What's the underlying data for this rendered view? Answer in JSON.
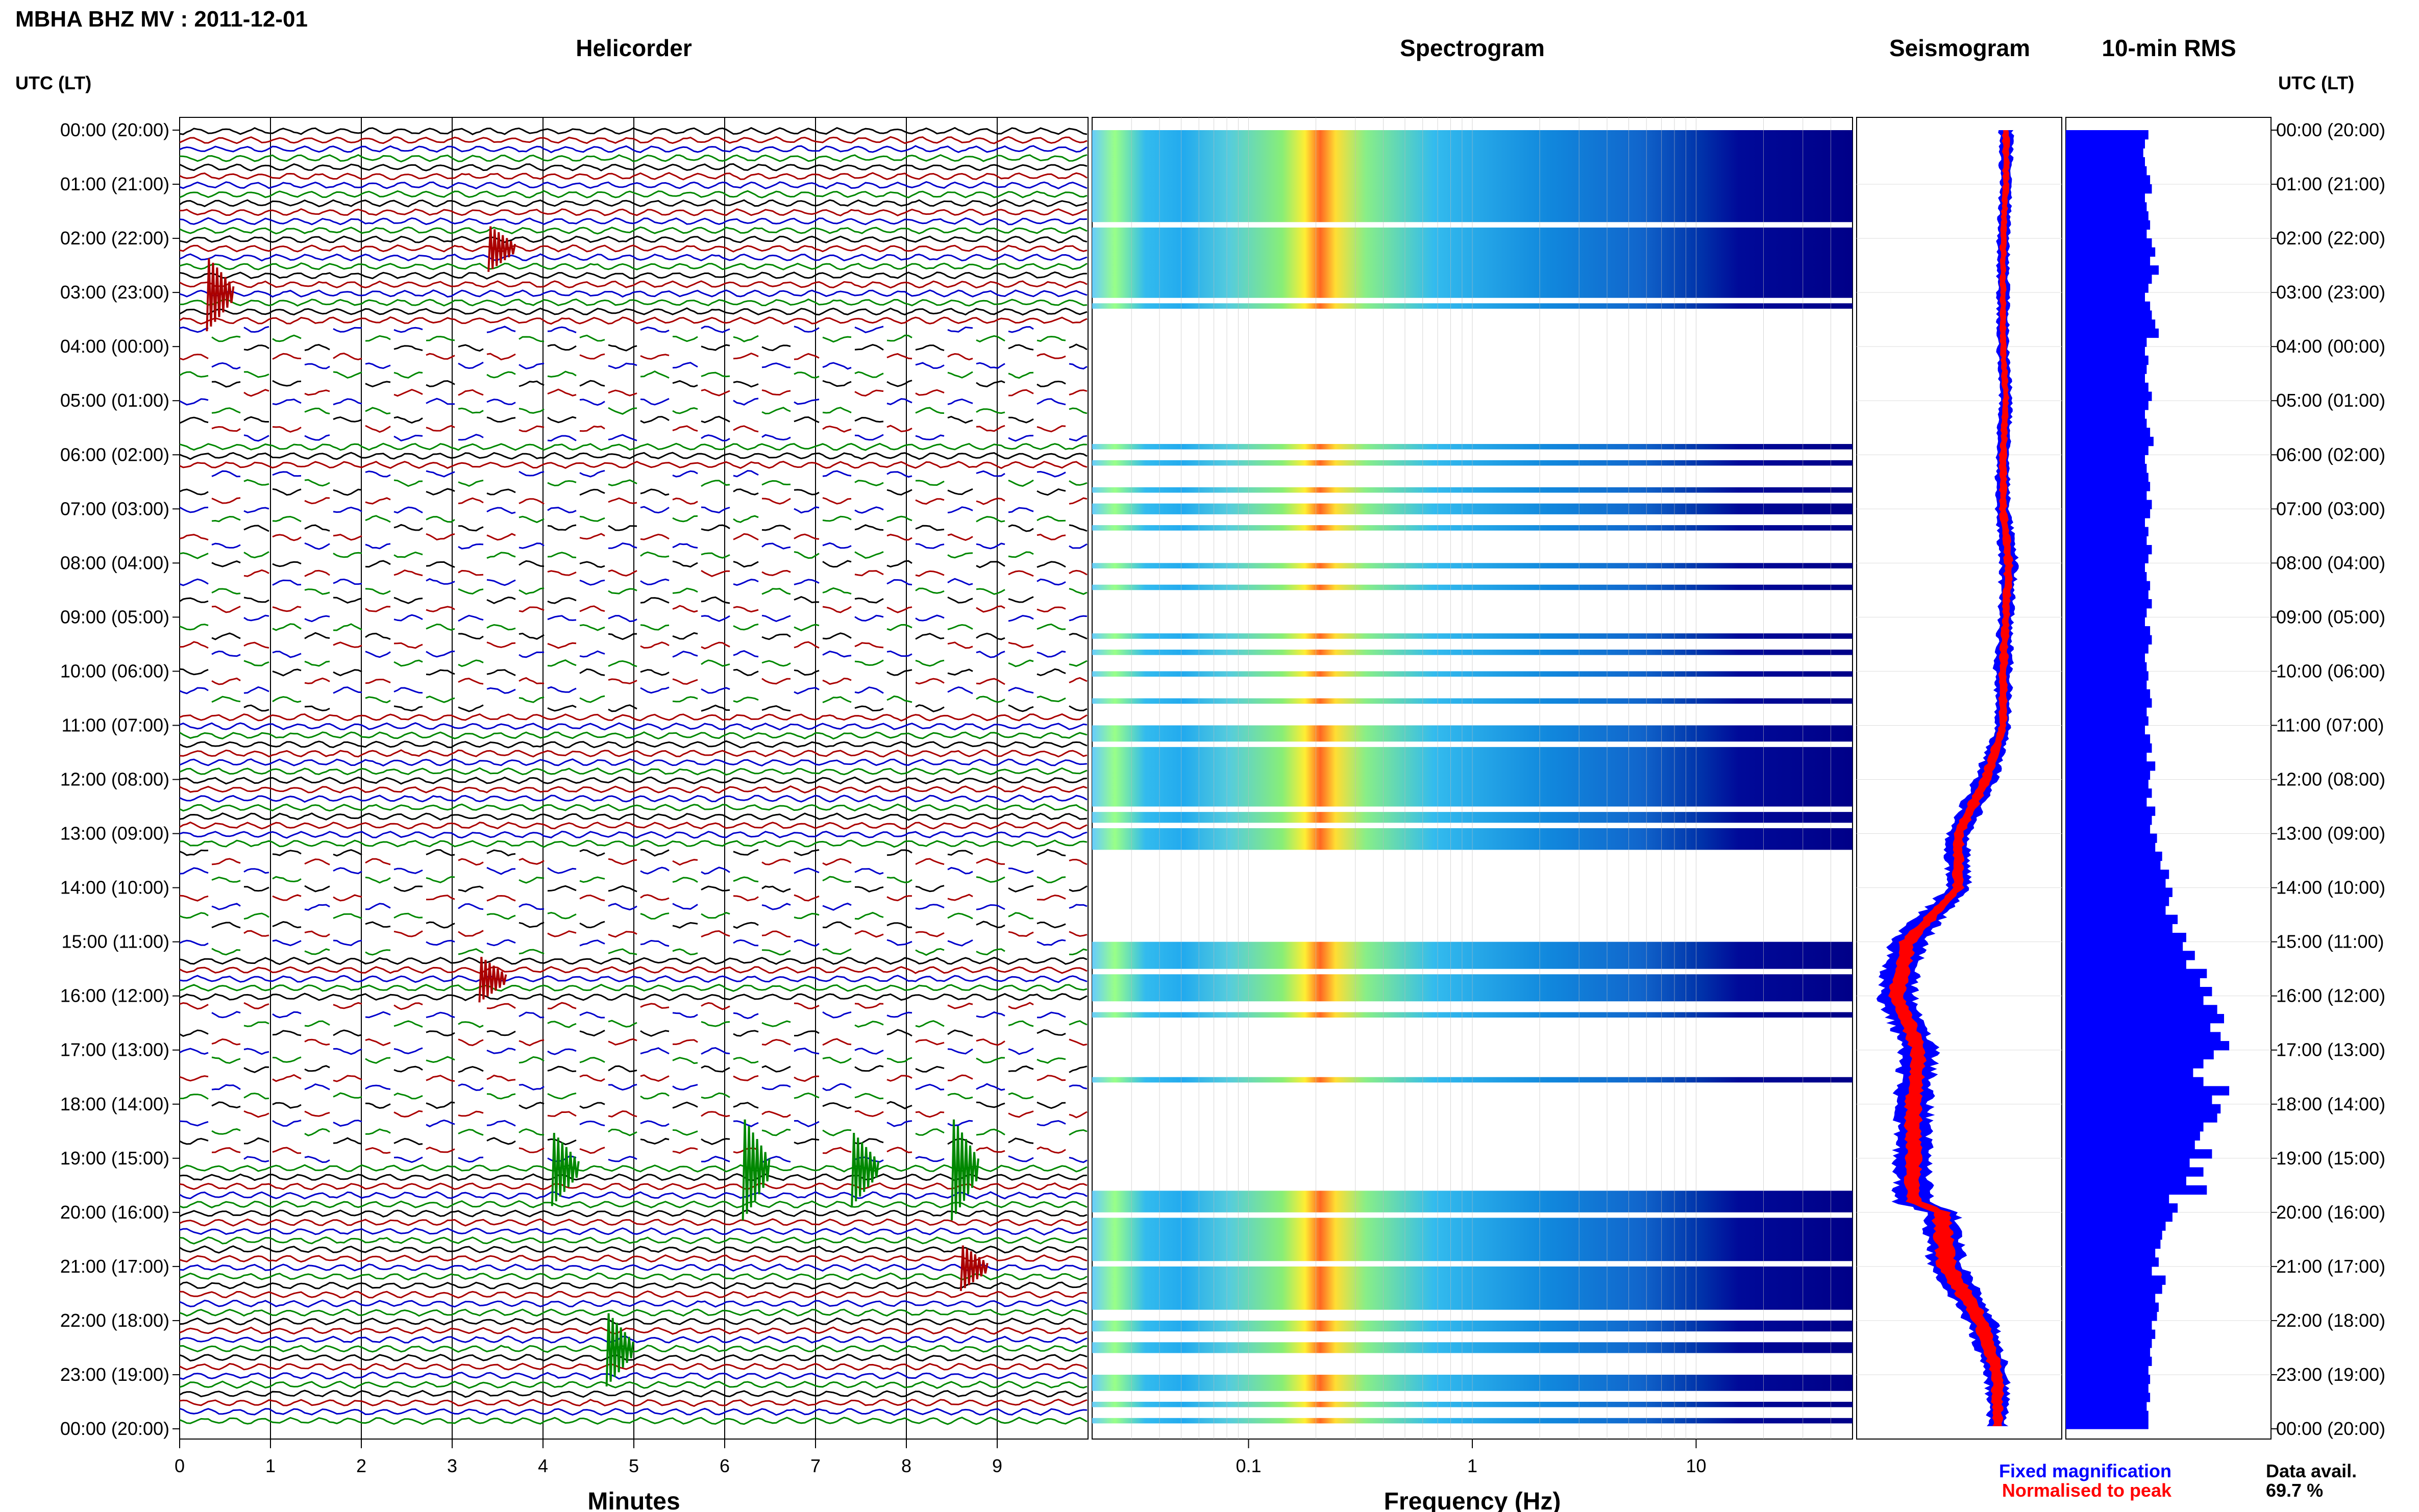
{
  "header": {
    "title": "MBHA BHZ MV : 2011-12-01",
    "utc_label_left": "UTC (LT)",
    "utc_label_right": "UTC (LT)"
  },
  "panels": {
    "helicorder": "Helicorder",
    "spectrogram": "Spectrogram",
    "seismogram": "Seismogram",
    "rms": "10-min RMS"
  },
  "axes": {
    "helicorder_xlabel": "Minutes",
    "spectrogram_xlabel": "Frequency (Hz)"
  },
  "legend": {
    "fixed": "Fixed magnification",
    "normalised": "Normalised to peak",
    "fixed_color": "#0000ff",
    "normalised_color": "#ff0000"
  },
  "data_avail": {
    "label": "Data avail.",
    "value": "69.7 %"
  },
  "colors": {
    "trace_black": "#000000",
    "trace_red": "#aa0000",
    "trace_blue": "#0000cc",
    "trace_green": "#008800",
    "rms_bar": "#0000ff",
    "spec_base": "#000088"
  },
  "chart_data": [
    {
      "type": "line",
      "panel": "Helicorder",
      "xlabel": "Minutes",
      "xlim": [
        0,
        10
      ],
      "x_ticks": [
        "0",
        "1",
        "2",
        "3",
        "4",
        "5",
        "6",
        "7",
        "8",
        "9"
      ],
      "y_ticks": [
        "00:00 (20:00)",
        "01:00 (21:00)",
        "02:00 (22:00)",
        "03:00 (23:00)",
        "04:00 (00:00)",
        "05:00 (01:00)",
        "06:00 (02:00)",
        "07:00 (03:00)",
        "08:00 (04:00)",
        "09:00 (05:00)",
        "10:00 (06:00)",
        "11:00 (07:00)",
        "12:00 (08:00)",
        "13:00 (09:00)",
        "14:00 (10:00)",
        "15:00 (11:00)",
        "16:00 (12:00)",
        "17:00 (13:00)",
        "18:00 (14:00)",
        "19:00 (15:00)",
        "20:00 (16:00)",
        "21:00 (17:00)",
        "22:00 (18:00)",
        "23:00 (19:00)",
        "00:00 (20:00)"
      ],
      "gap_rows_10min": [
        22,
        23,
        24,
        25,
        26,
        27,
        28,
        29,
        30,
        31,
        32,
        33,
        34,
        38,
        39,
        40,
        41,
        42,
        43,
        44,
        45,
        46,
        47,
        48,
        49,
        50,
        51,
        52,
        53,
        54,
        55,
        56,
        57,
        58,
        59,
        60,
        61,
        62,
        63,
        64,
        80,
        81,
        82,
        83,
        84,
        85,
        86,
        87,
        88,
        89,
        90,
        91,
        97,
        98,
        99,
        100,
        101,
        102,
        103,
        104,
        105,
        106,
        107,
        108,
        109,
        110,
        111,
        112,
        113,
        114
      ],
      "events": [
        {
          "row": 13,
          "minute": 3.4,
          "size": 1
        },
        {
          "row": 18,
          "minute": 0.3,
          "size": 2
        },
        {
          "row": 94,
          "minute": 3.3,
          "size": 1
        },
        {
          "row": 115,
          "minute": 4.1,
          "size": 2
        },
        {
          "row": 115,
          "minute": 6.2,
          "size": 3
        },
        {
          "row": 115,
          "minute": 7.4,
          "size": 2
        },
        {
          "row": 115,
          "minute": 8.5,
          "size": 3
        },
        {
          "row": 126,
          "minute": 8.6,
          "size": 1
        },
        {
          "row": 135,
          "minute": 4.7,
          "size": 2
        }
      ]
    },
    {
      "type": "heatmap",
      "panel": "Spectrogram",
      "xlabel": "Frequency (Hz)",
      "x_scale": "log",
      "xlim": [
        0.02,
        50
      ],
      "x_ticks": [
        "0.1",
        "1",
        "10"
      ],
      "peak_frequency_hz": 0.25,
      "data_intervals_hours": [
        [
          0,
          1.7
        ],
        [
          1.8,
          3.1
        ],
        [
          3.2,
          3.3
        ],
        [
          5.8,
          5.9
        ],
        [
          6.1,
          6.2
        ],
        [
          6.6,
          6.7
        ],
        [
          6.9,
          7.1
        ],
        [
          7.3,
          7.4
        ],
        [
          8.0,
          8.1
        ],
        [
          8.4,
          8.5
        ],
        [
          9.3,
          9.4
        ],
        [
          9.6,
          9.7
        ],
        [
          10.0,
          10.1
        ],
        [
          10.5,
          10.6
        ],
        [
          11.0,
          11.3
        ],
        [
          11.4,
          12.5
        ],
        [
          12.6,
          12.8
        ],
        [
          12.9,
          13.3
        ],
        [
          15.0,
          15.5
        ],
        [
          15.6,
          16.1
        ],
        [
          16.3,
          16.4
        ],
        [
          17.5,
          17.6
        ],
        [
          19.6,
          20.0
        ],
        [
          20.1,
          20.9
        ],
        [
          21.0,
          21.8
        ],
        [
          22.0,
          22.2
        ],
        [
          22.4,
          22.6
        ],
        [
          23.0,
          23.3
        ],
        [
          23.5,
          23.6
        ],
        [
          23.8,
          23.9
        ]
      ]
    },
    {
      "type": "line",
      "panel": "Seismogram",
      "x_hours": [
        0,
        1,
        2,
        3,
        4,
        5,
        6,
        7,
        8,
        9,
        10,
        11,
        12,
        13,
        14,
        15,
        16,
        17,
        18,
        19,
        19.8,
        20,
        21,
        22,
        23,
        24
      ],
      "center_offset": [
        0.55,
        0.55,
        0.5,
        0.5,
        0.5,
        0.55,
        0.5,
        0.5,
        0.6,
        0.55,
        0.5,
        0.5,
        0.2,
        -0.3,
        -0.3,
        -1.2,
        -1.4,
        -1.0,
        -1.1,
        -1.1,
        -1.1,
        -0.6,
        -0.5,
        0.1,
        0.4,
        0.4
      ],
      "fixed_halfwidth": [
        0.12,
        0.1,
        0.1,
        0.1,
        0.1,
        0.1,
        0.12,
        0.12,
        0.15,
        0.12,
        0.15,
        0.12,
        0.2,
        0.2,
        0.2,
        0.3,
        0.3,
        0.3,
        0.3,
        0.3,
        0.3,
        0.3,
        0.3,
        0.25,
        0.2,
        0.15
      ],
      "normalised_halfwidth": [
        0.06,
        0.05,
        0.05,
        0.05,
        0.05,
        0.05,
        0.06,
        0.06,
        0.07,
        0.06,
        0.07,
        0.06,
        0.09,
        0.09,
        0.09,
        0.13,
        0.13,
        0.13,
        0.13,
        0.13,
        0.13,
        0.15,
        0.15,
        0.13,
        0.1,
        0.08
      ]
    },
    {
      "type": "bar",
      "panel": "10-min RMS",
      "orientation": "horizontal",
      "bin_minutes": 10,
      "values": [
        0.48,
        0.46,
        0.45,
        0.46,
        0.47,
        0.49,
        0.5,
        0.46,
        0.47,
        0.48,
        0.49,
        0.47,
        0.5,
        0.52,
        0.49,
        0.54,
        0.5,
        0.48,
        0.46,
        0.49,
        0.5,
        0.52,
        0.54,
        0.47,
        0.46,
        0.48,
        0.47,
        0.46,
        0.48,
        0.5,
        0.48,
        0.46,
        0.47,
        0.49,
        0.51,
        0.48,
        0.46,
        0.47,
        0.48,
        0.49,
        0.47,
        0.5,
        0.49,
        0.46,
        0.48,
        0.47,
        0.5,
        0.48,
        0.46,
        0.47,
        0.49,
        0.48,
        0.5,
        0.47,
        0.46,
        0.49,
        0.5,
        0.48,
        0.46,
        0.47,
        0.48,
        0.47,
        0.49,
        0.5,
        0.47,
        0.48,
        0.46,
        0.49,
        0.5,
        0.47,
        0.52,
        0.49,
        0.48,
        0.5,
        0.47,
        0.52,
        0.5,
        0.49,
        0.53,
        0.52,
        0.56,
        0.55,
        0.6,
        0.58,
        0.62,
        0.6,
        0.58,
        0.65,
        0.62,
        0.7,
        0.68,
        0.75,
        0.7,
        0.82,
        0.78,
        0.85,
        0.8,
        0.88,
        0.92,
        0.84,
        0.9,
        0.95,
        0.86,
        0.8,
        0.74,
        0.8,
        0.95,
        0.85,
        0.9,
        0.88,
        0.8,
        0.78,
        0.75,
        0.85,
        0.72,
        0.8,
        0.7,
        0.82,
        0.6,
        0.65,
        0.62,
        0.58,
        0.56,
        0.55,
        0.52,
        0.54,
        0.5,
        0.58,
        0.56,
        0.52,
        0.54,
        0.53,
        0.5,
        0.52,
        0.5,
        0.49,
        0.5,
        0.48,
        0.49,
        0.48,
        0.49,
        0.47,
        0.48,
        0.48
      ]
    }
  ]
}
